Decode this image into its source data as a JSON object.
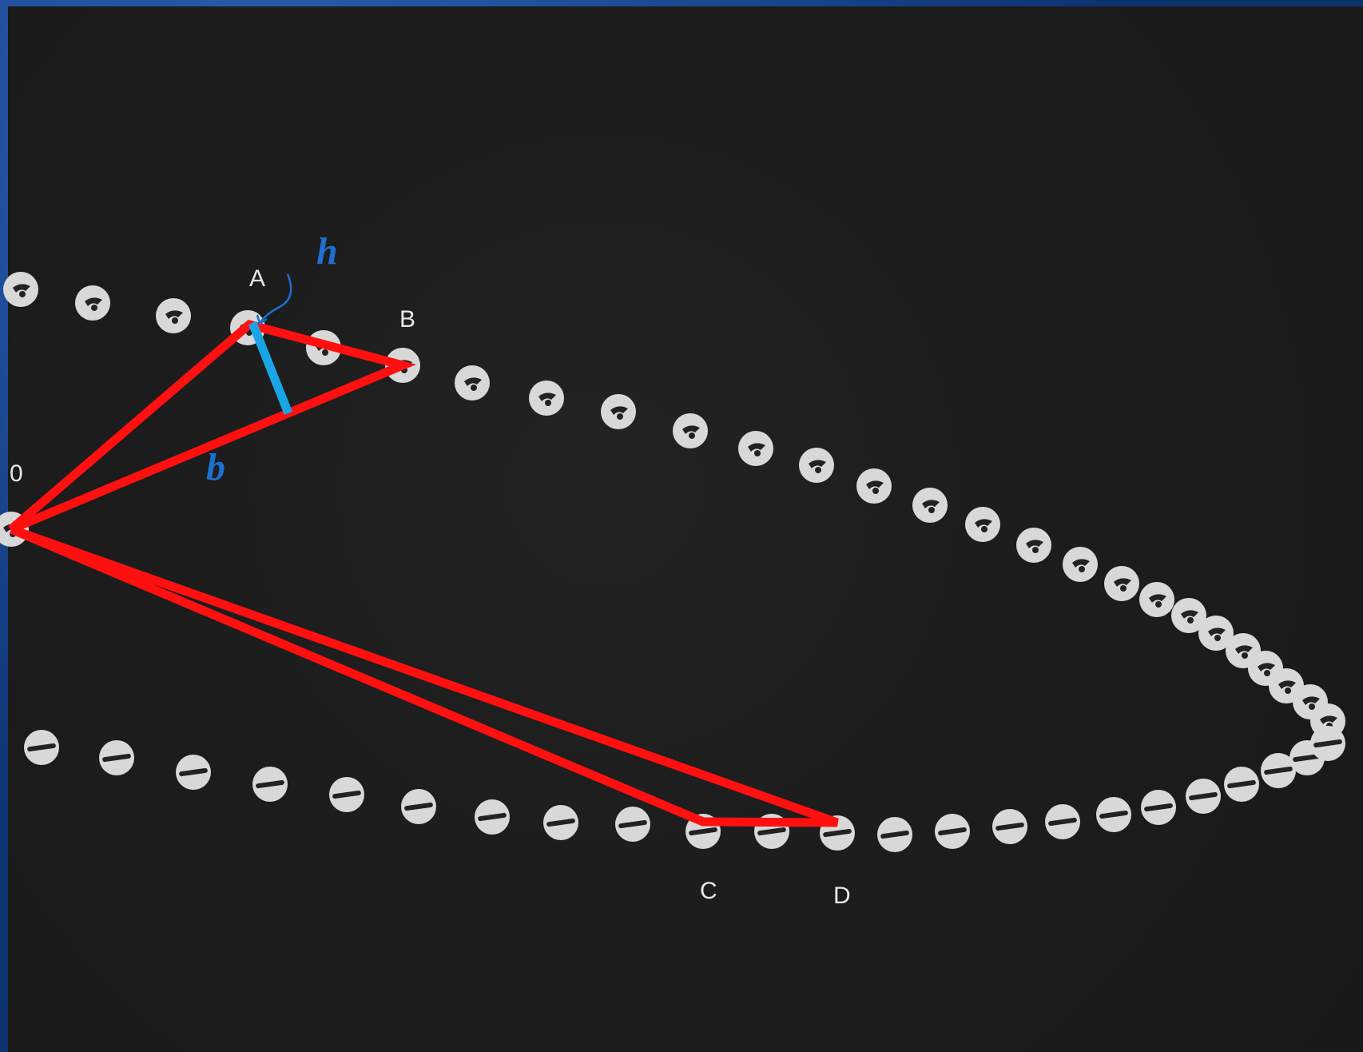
{
  "labels": {
    "origin": "0",
    "A": "A",
    "B": "B",
    "C": "C",
    "D": "D",
    "height": "h",
    "base": "b"
  },
  "colors": {
    "background_blue": "#0d2f66",
    "photo": "#1d1d1d",
    "ball": "#d6d6d6",
    "triangle": "#ff1010",
    "height_segment": "#1aa6e6",
    "math_label": "#1e6fd0"
  },
  "icons": {
    "ball": "stroboscopic-ball-icon"
  }
}
